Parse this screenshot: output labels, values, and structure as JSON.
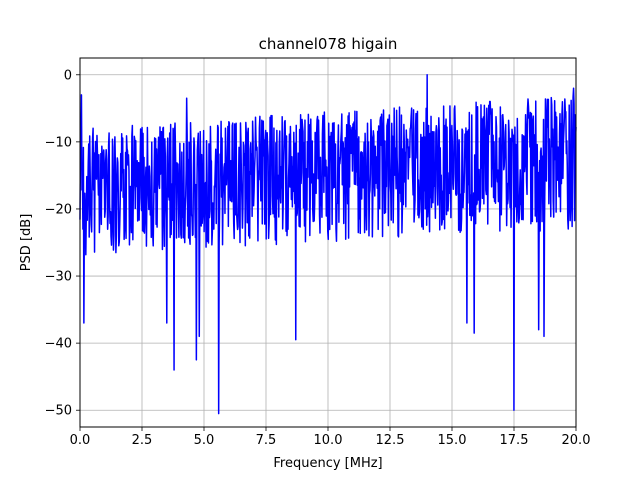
{
  "chart_data": {
    "type": "line",
    "title": "channel078 higain",
    "xlabel": "Frequency [MHz]",
    "ylabel": "PSD [dB]",
    "xlim": [
      0,
      20
    ],
    "ylim": [
      -52.5,
      2.5
    ],
    "xticks": [
      0,
      2.5,
      5,
      7.5,
      10,
      12.5,
      15,
      17.5,
      20
    ],
    "xtick_labels": [
      "0.0",
      "2.5",
      "5.0",
      "7.5",
      "10.0",
      "12.5",
      "15.0",
      "17.5",
      "20.0"
    ],
    "yticks": [
      0,
      -10,
      -20,
      -30,
      -40,
      -50
    ],
    "ytick_labels": [
      "0",
      "−10",
      "−20",
      "−30",
      "−40",
      "−50"
    ],
    "grid": true,
    "series": [
      {
        "color": "#0000ff",
        "x_start": 0,
        "x_end": 20,
        "num_points": 1024,
        "baseline_start_db": -17,
        "baseline_end_db": -13,
        "upper_envelope_start_db": -8,
        "upper_envelope_end_db": -3,
        "lower_envelope_start_db": -27,
        "lower_envelope_end_db": -23,
        "peaks": [
          {
            "x": 0.05,
            "y": -3
          },
          {
            "x": 4.3,
            "y": -3.5
          },
          {
            "x": 14.0,
            "y": 0
          },
          {
            "x": 19.9,
            "y": -2
          }
        ],
        "dips": [
          {
            "x": 0.15,
            "y": -37
          },
          {
            "x": 3.5,
            "y": -37
          },
          {
            "x": 3.8,
            "y": -44
          },
          {
            "x": 4.7,
            "y": -42.5
          },
          {
            "x": 4.8,
            "y": -39
          },
          {
            "x": 5.6,
            "y": -50.5
          },
          {
            "x": 8.7,
            "y": -39.5
          },
          {
            "x": 15.6,
            "y": -37
          },
          {
            "x": 15.9,
            "y": -38.5
          },
          {
            "x": 17.5,
            "y": -50
          },
          {
            "x": 18.5,
            "y": -38
          },
          {
            "x": 18.7,
            "y": -39
          }
        ]
      }
    ]
  }
}
